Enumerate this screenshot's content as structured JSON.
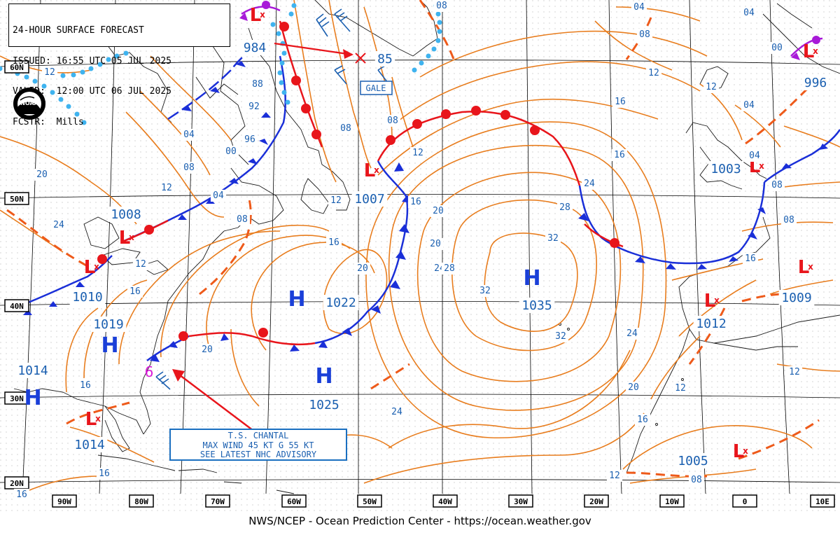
{
  "header": {
    "title": "24-HOUR SURFACE FORECAST",
    "issued": "ISSUED: 16:55 UTC 05 JUL 2025",
    "valid": "VALID:  12:00 UTC 06 JUL 2025",
    "forecaster": "FCSTR:  Mills"
  },
  "logo": {
    "text": "NOAA",
    "icon": "noaa-logo"
  },
  "footer": {
    "credit": "NWS/NCEP - Ocean Prediction Center - https://ocean.weather.gov"
  },
  "advisory": {
    "line1": "T.S. CHANTAL",
    "line2": "MAX WIND 45 KT G 55 KT",
    "line3": "SEE LATEST NHC ADVISORY"
  },
  "gale_label": "GALE",
  "storm_symbol": "6",
  "colors": {
    "isobar": "#e87d1e",
    "cold_front": "#1a2fd8",
    "warm_front": "#e8151b",
    "occluded_front": "#a81ad8",
    "trough": "#ee5a1a",
    "ice_edge": "#3fb3ef",
    "high": "#1a3fd8",
    "low": "#e8151b",
    "pressure_text": "#1a5fb0",
    "grid": "#000000",
    "dots": "#a0a0a0"
  },
  "longitude_labels": [
    "90W",
    "80W",
    "70W",
    "60W",
    "50W",
    "40W",
    "30W",
    "20W",
    "10W",
    "0",
    "10E"
  ],
  "latitude_labels": [
    "60N",
    "50N",
    "40N",
    "30N",
    "20N"
  ],
  "highs": [
    {
      "label": "H",
      "pressure": "1022"
    },
    {
      "label": "H",
      "pressure": "1035"
    },
    {
      "label": "H",
      "pressure": "1025"
    },
    {
      "label": "H",
      "pressure": "1019"
    },
    {
      "label": "H",
      "pressure": "1014"
    }
  ],
  "lows": [
    {
      "label": "L",
      "pressure": "984"
    },
    {
      "label": "L",
      "pressure": "1007"
    },
    {
      "label": "L",
      "pressure": "1008"
    },
    {
      "label": "L",
      "pressure": "1010"
    },
    {
      "label": "L",
      "pressure": "1014"
    },
    {
      "label": "L",
      "pressure": "996"
    },
    {
      "label": "L",
      "pressure": "1003"
    },
    {
      "label": "L",
      "pressure": "1009"
    },
    {
      "label": "L",
      "pressure": "1012"
    },
    {
      "label": "L",
      "pressure": "1005"
    }
  ],
  "forecast_position_label": "85",
  "isobar_labels": [
    "08",
    "04",
    "08",
    "04",
    "12",
    "00",
    "88",
    "92",
    "96",
    "00",
    "04",
    "08",
    "12",
    "04",
    "08",
    "12",
    "16",
    "20",
    "08",
    "12",
    "16",
    "12",
    "16",
    "20",
    "24",
    "28",
    "32",
    "32",
    "32",
    "24",
    "28",
    "24",
    "20",
    "16",
    "12",
    "08",
    "16",
    "20",
    "12",
    "16",
    "24",
    "16",
    "16",
    "20",
    "12",
    "08",
    "04",
    "08",
    "04",
    "12",
    "16",
    "12",
    "16",
    "20",
    "24",
    "08",
    "12"
  ]
}
